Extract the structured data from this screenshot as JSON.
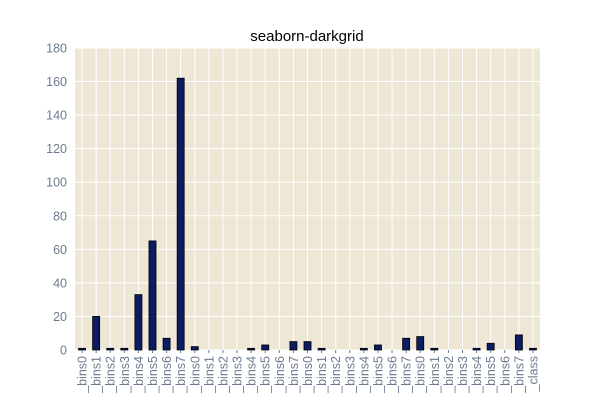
{
  "chart_data": {
    "type": "bar",
    "title": "seaborn-darkgrid",
    "xlabel": "",
    "ylabel": "",
    "ylim": [
      0,
      180
    ],
    "yticks": [
      0,
      20,
      40,
      60,
      80,
      100,
      120,
      140,
      160,
      180
    ],
    "grid": true,
    "categories": [
      "_bins0",
      "_bins1",
      "_bins2",
      "_bins3",
      "_bins4",
      "_bins5",
      "_bins6",
      "_bins7",
      "_bins0",
      "_bins1",
      "_bins2",
      "_bins3",
      "_bins4",
      "_bins5",
      "_bins6",
      "_bins7",
      "_bins0",
      "_bins1",
      "_bins2",
      "_bins3",
      "_bins4",
      "_bins5",
      "_bins6",
      "_bins7",
      "_bins0",
      "_bins1",
      "_bins2",
      "_bins3",
      "_bins4",
      "_bins5",
      "_bins6",
      "_bins7",
      "_class"
    ],
    "values": [
      1,
      20,
      1,
      1,
      33,
      65,
      7,
      162,
      2,
      0,
      0,
      0,
      1,
      3,
      0,
      5,
      5,
      1,
      0,
      0,
      1,
      3,
      0,
      7,
      8,
      1,
      0,
      0,
      1,
      4,
      0,
      9,
      1
    ],
    "colors": {
      "plot_background": "#efe7d5",
      "bar_fill": "#0b1b64",
      "grid": "#ffffff",
      "tick_text": "#6b7a8f"
    }
  }
}
